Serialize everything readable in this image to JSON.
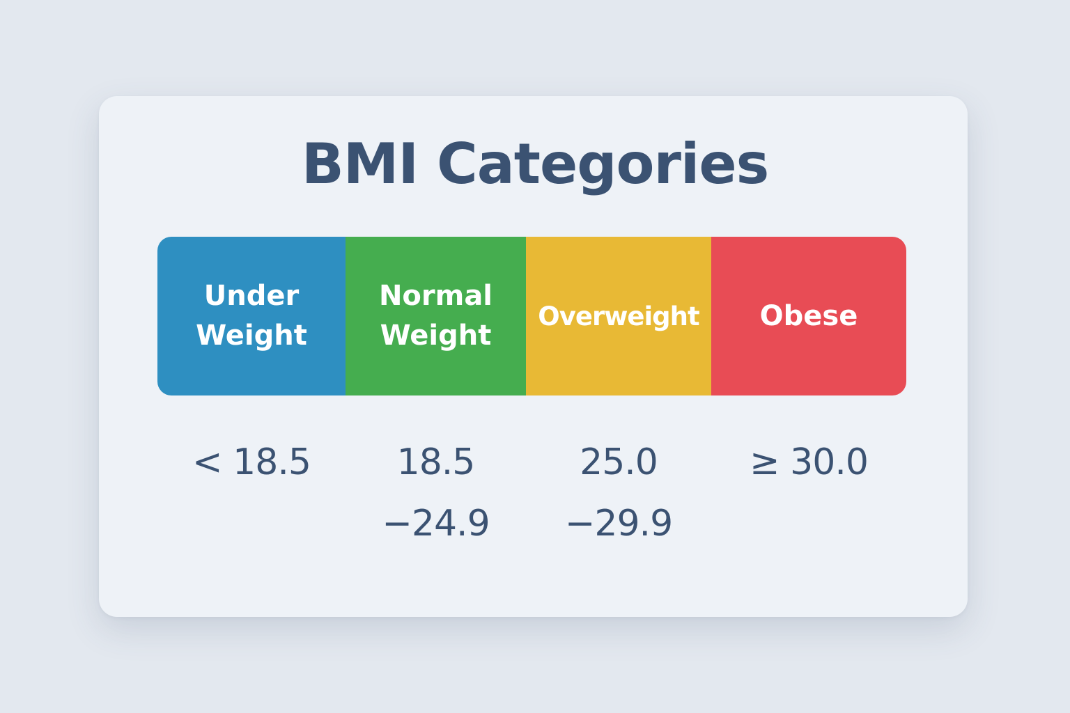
{
  "title": "BMI Categories",
  "categories": [
    {
      "label": "Under\nWeight",
      "range": "< 18.5",
      "color": "#2e8fc1"
    },
    {
      "label": "Normal\nWeight",
      "range": "18.5\n−24.9",
      "color": "#45ad4f"
    },
    {
      "label": "Overweight",
      "range": "25.0\n−29.9",
      "color": "#e8b935"
    },
    {
      "label": "Obese",
      "range": "≥ 30.0",
      "color": "#e84c55"
    }
  ]
}
